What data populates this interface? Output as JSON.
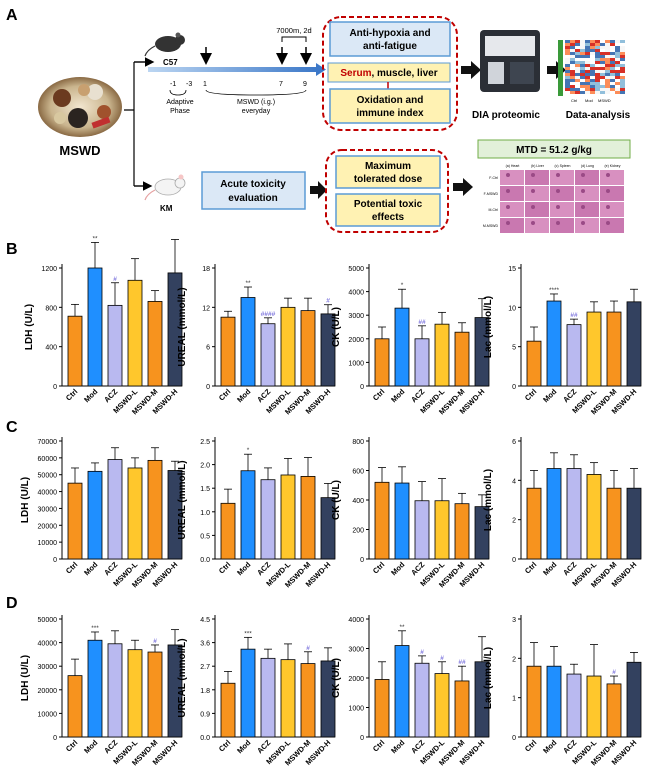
{
  "panel_letters": [
    "A",
    "B",
    "C",
    "D"
  ],
  "panel_a": {
    "herb_label": "MSWD",
    "mouse1": "C57",
    "mouse2": "KM",
    "timeline": {
      "altitude_label": "7000m, 2d",
      "ticks": [
        "-1",
        "-3",
        "1",
        "7",
        "9"
      ],
      "adaptive_phase": [
        "Adaptive",
        "Phase"
      ],
      "mswd_label": [
        "MSWD (i.g.)",
        "everyday"
      ]
    },
    "top_boxes": {
      "box1": [
        "Anti-hypoxia and",
        "anti-fatigue"
      ],
      "box2_red": "Serum",
      "box2_rest": ", muscle, liver",
      "box3": [
        "Oxidation and",
        "immune index"
      ]
    },
    "dia_label": "DIA proteomic",
    "analysis_label": "Data-analysis",
    "acute_box": [
      "Acute toxicity",
      "evaluation"
    ],
    "tox_boxes": {
      "box1": [
        "Maximum",
        "tolerated dose"
      ],
      "box2": [
        "Potential toxic",
        "effects"
      ]
    },
    "mtd_label": "MTD = 51.2 g/kg",
    "histology": {
      "cols": [
        "(a) Heart",
        "(b) Liver",
        "(c) Spleen",
        "(d) Lung",
        "(e) Kidney"
      ],
      "rows": [
        "F-Ctrl",
        "F-MSWD",
        "M-Ctrl",
        "M-MSWD"
      ]
    },
    "heatmap_labels": [
      "Ctrl",
      "Mod",
      "MSWD"
    ]
  },
  "colors": {
    "groups": [
      "#f7931e",
      "#1f8fff",
      "#b9b9f0",
      "#ffc72c",
      "#f7931e",
      "#33415f"
    ],
    "sig_black": "#333333",
    "sig_blue": "#4a3fd0",
    "accent_red": "#c00000",
    "box_fill": "#fff2b3",
    "box_blue": "#dbe8f6"
  },
  "chart_data": [
    {
      "id": "B1",
      "row": "B",
      "type": "bar",
      "ylabel": "LDH (U/L)",
      "ylim": [
        0,
        1200
      ],
      "yticks": [
        "0",
        "400",
        "800",
        "1200"
      ],
      "categories": [
        "Ctrl",
        "Mod",
        "ACZ",
        "MSWD-L",
        "MSWD-M",
        "MSWD-H"
      ],
      "values": [
        710,
        1200,
        820,
        1075,
        860,
        1150
      ],
      "errors": [
        120,
        260,
        230,
        220,
        110,
        340
      ],
      "sig": [
        "",
        "**",
        "#",
        "",
        "",
        ""
      ],
      "sig_color": [
        "",
        "black",
        "blue",
        "",
        "",
        ""
      ]
    },
    {
      "id": "B2",
      "row": "B",
      "type": "bar",
      "ylabel": "UREAL (mmol/L)",
      "ylim": [
        0,
        18
      ],
      "yticks": [
        "0",
        "6",
        "12",
        "18"
      ],
      "categories": [
        "Ctrl",
        "Mod",
        "ACZ",
        "MSWD-L",
        "MSWD-M",
        "MSWD-H"
      ],
      "values": [
        10.5,
        13.5,
        9.5,
        12,
        11.5,
        11
      ],
      "errors": [
        0.9,
        1.6,
        0.9,
        1.4,
        1.9,
        1.4
      ],
      "sig": [
        "",
        "**",
        "####",
        "",
        "",
        "#"
      ],
      "sig_color": [
        "",
        "black",
        "blue",
        "",
        "",
        "blue"
      ]
    },
    {
      "id": "B3",
      "row": "B",
      "type": "bar",
      "ylabel": "CK (U/L)",
      "ylim": [
        0,
        5000
      ],
      "yticks": [
        "0",
        "1000",
        "2000",
        "3000",
        "4000",
        "5000"
      ],
      "categories": [
        "Ctrl",
        "Mod",
        "ACZ",
        "MSWD-L",
        "MSWD-M",
        "MSWD-H"
      ],
      "values": [
        2000,
        3300,
        2000,
        2620,
        2280,
        2900
      ],
      "errors": [
        500,
        800,
        550,
        500,
        400,
        800
      ],
      "sig": [
        "",
        "*",
        "##",
        "",
        "",
        ""
      ],
      "sig_color": [
        "",
        "black",
        "blue",
        "",
        "",
        ""
      ]
    },
    {
      "id": "B4",
      "row": "B",
      "type": "bar",
      "ylabel": "Lac (mmol/L)",
      "ylim": [
        0,
        15
      ],
      "yticks": [
        "0",
        "5",
        "10",
        "15"
      ],
      "categories": [
        "Ctrl",
        "Mod",
        "ACZ",
        "MSWD-L",
        "MSWD-M",
        "MSWD-H"
      ],
      "values": [
        5.7,
        10.8,
        7.8,
        9.4,
        9.4,
        10.7
      ],
      "errors": [
        1.8,
        0.9,
        0.7,
        1.3,
        1.4,
        1.6
      ],
      "sig": [
        "",
        "****",
        "##",
        "",
        "",
        ""
      ],
      "sig_color": [
        "",
        "black",
        "blue",
        "",
        "",
        ""
      ]
    },
    {
      "id": "C1",
      "row": "C",
      "type": "bar",
      "ylabel": "LDH (U/L)",
      "ylim": [
        0,
        70000
      ],
      "yticks": [
        "0",
        "10000",
        "20000",
        "30000",
        "40000",
        "50000",
        "60000",
        "70000"
      ],
      "categories": [
        "Ctrl",
        "Mod",
        "ACZ",
        "MSWD-L",
        "MSWD-M",
        "MSWD-H"
      ],
      "values": [
        45000,
        52000,
        59000,
        54000,
        58500,
        52500
      ],
      "errors": [
        9000,
        5000,
        7000,
        6000,
        7500,
        5500
      ],
      "sig": [
        "",
        "",
        "",
        "",
        "",
        ""
      ],
      "sig_color": [
        "",
        "",
        "",
        "",
        "",
        ""
      ]
    },
    {
      "id": "C2",
      "row": "C",
      "type": "bar",
      "ylabel": "UREAL (mmol/L)",
      "ylim": [
        0,
        2.5
      ],
      "yticks": [
        "0.0",
        "0.5",
        "1.0",
        "1.5",
        "2.0",
        "2.5"
      ],
      "categories": [
        "Ctrl",
        "Mod",
        "ACZ",
        "MSWD-L",
        "MSWD-M",
        "MSWD-H"
      ],
      "values": [
        1.18,
        1.87,
        1.68,
        1.78,
        1.75,
        1.3
      ],
      "errors": [
        0.3,
        0.35,
        0.25,
        0.35,
        0.4,
        0.3
      ],
      "sig": [
        "",
        "*",
        "",
        "",
        "",
        ""
      ],
      "sig_color": [
        "",
        "black",
        "",
        "",
        "",
        ""
      ]
    },
    {
      "id": "C3",
      "row": "C",
      "type": "bar",
      "ylabel": "CK (U/L)",
      "ylim": [
        0,
        800
      ],
      "yticks": [
        "0",
        "200",
        "400",
        "600",
        "800"
      ],
      "categories": [
        "Ctrl",
        "Mod",
        "ACZ",
        "MSWD-L",
        "MSWD-M",
        "MSWD-H"
      ],
      "values": [
        520,
        515,
        395,
        395,
        375,
        355
      ],
      "errors": [
        100,
        110,
        130,
        150,
        70,
        80
      ],
      "sig": [
        "",
        "",
        "",
        "",
        "",
        ""
      ],
      "sig_color": [
        "",
        "",
        "",
        "",
        "",
        ""
      ]
    },
    {
      "id": "C4",
      "row": "C",
      "type": "bar",
      "ylabel": "Lac (mmol/L)",
      "ylim": [
        0,
        6
      ],
      "yticks": [
        "0",
        "2",
        "4",
        "6"
      ],
      "categories": [
        "Ctrl",
        "Mod",
        "ACZ",
        "MSWD-L",
        "MSWD-M",
        "MSWD-H"
      ],
      "values": [
        3.6,
        4.6,
        4.6,
        4.3,
        3.6,
        3.6
      ],
      "errors": [
        0.9,
        0.8,
        0.7,
        0.6,
        0.9,
        1.0
      ],
      "sig": [
        "",
        "",
        "",
        "",
        "",
        ""
      ],
      "sig_color": [
        "",
        "",
        "",
        "",
        "",
        ""
      ]
    },
    {
      "id": "D1",
      "row": "D",
      "type": "bar",
      "ylabel": "LDH (U/L)",
      "ylim": [
        0,
        50000
      ],
      "yticks": [
        "0",
        "10000",
        "20000",
        "30000",
        "40000",
        "50000"
      ],
      "categories": [
        "Ctrl",
        "Mod",
        "ACZ",
        "MSWD-L",
        "MSWD-M",
        "MSWD-H"
      ],
      "values": [
        26000,
        41000,
        39500,
        37000,
        36000,
        39000
      ],
      "errors": [
        7000,
        3500,
        5500,
        4000,
        3000,
        6500
      ],
      "sig": [
        "",
        "***",
        "",
        "",
        "#",
        ""
      ],
      "sig_color": [
        "",
        "black",
        "",
        "",
        "blue",
        ""
      ]
    },
    {
      "id": "D2",
      "row": "D",
      "type": "bar",
      "ylabel": "UREAL (mmol/L)",
      "ylim": [
        0,
        4.5
      ],
      "yticks": [
        "0.0",
        "0.9",
        "1.8",
        "2.7",
        "3.6",
        "4.5"
      ],
      "categories": [
        "Ctrl",
        "Mod",
        "ACZ",
        "MSWD-L",
        "MSWD-M",
        "MSWD-H"
      ],
      "values": [
        2.05,
        3.35,
        3.0,
        2.95,
        2.8,
        2.9
      ],
      "errors": [
        0.45,
        0.45,
        0.35,
        0.6,
        0.45,
        0.5
      ],
      "sig": [
        "",
        "***",
        "",
        "",
        "#",
        ""
      ],
      "sig_color": [
        "",
        "black",
        "",
        "",
        "blue",
        ""
      ]
    },
    {
      "id": "D3",
      "row": "D",
      "type": "bar",
      "ylabel": "CK (U/L)",
      "ylim": [
        0,
        4000
      ],
      "yticks": [
        "0",
        "1000",
        "2000",
        "3000",
        "4000"
      ],
      "categories": [
        "Ctrl",
        "Mod",
        "ACZ",
        "MSWD-L",
        "MSWD-M",
        "MSWD-H"
      ],
      "values": [
        1950,
        3100,
        2500,
        2150,
        1900,
        2550
      ],
      "errors": [
        600,
        500,
        250,
        400,
        500,
        850
      ],
      "sig": [
        "",
        "**",
        "#",
        "#",
        "##",
        ""
      ],
      "sig_color": [
        "",
        "black",
        "blue",
        "blue",
        "blue",
        ""
      ]
    },
    {
      "id": "D4",
      "row": "D",
      "type": "bar",
      "ylabel": "Lac (mmol/L)",
      "ylim": [
        0,
        3
      ],
      "yticks": [
        "0",
        "1",
        "2",
        "3"
      ],
      "categories": [
        "Ctrl",
        "Mod",
        "ACZ",
        "MSWD-L",
        "MSWD-M",
        "MSWD-H"
      ],
      "values": [
        1.8,
        1.8,
        1.6,
        1.55,
        1.35,
        1.9
      ],
      "errors": [
        0.6,
        0.5,
        0.25,
        0.8,
        0.2,
        0.25
      ],
      "sig": [
        "",
        "",
        "",
        "",
        "#",
        ""
      ],
      "sig_color": [
        "",
        "",
        "",
        "",
        "blue",
        ""
      ]
    }
  ]
}
